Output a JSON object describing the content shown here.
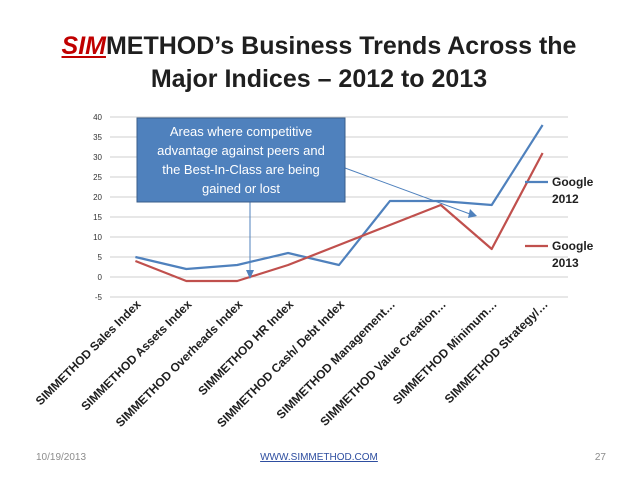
{
  "slide": {
    "title_brand": "SIM",
    "title_line1_rest": "METHOD’s Business Trends Across the",
    "title_line2": "Major Indices – 2012 to 2013",
    "date": "10/19/2013",
    "url": "WWW.SIMMETHOD.COM",
    "page_number": "27"
  },
  "colors": {
    "series_2012": "#4f81bd",
    "series_2013": "#c0504d",
    "callout_fill": "#4f81bd",
    "callout_text": "#ffffff",
    "grid": "#bfbfbf"
  },
  "chart_data": {
    "type": "line",
    "title": "",
    "xlabel": "",
    "ylabel": "",
    "ylim": [
      -5,
      40
    ],
    "yticks": [
      -5,
      0,
      5,
      10,
      15,
      20,
      25,
      30,
      35,
      40
    ],
    "grid": true,
    "legend_position": "right",
    "categories": [
      "SIMMETHOD Sales Index",
      "SIMMETHOD Assets Index",
      "SIMMETHOD Overheads Index",
      "SIMMETHOD HR Index",
      "SIMMETHOD Cash/ Debt Index",
      "SIMMETHOD Management…",
      "SIMMETHOD Value Creation…",
      "SIMMETHOD Minimum…",
      "SIMMETHOD Strategy/…"
    ],
    "series": [
      {
        "name": "Google 2012",
        "legend_lines": [
          "Google",
          "2012"
        ],
        "values": [
          5,
          2,
          3,
          6,
          3,
          19,
          19,
          18,
          38
        ]
      },
      {
        "name": "Google 2013",
        "legend_lines": [
          "Google",
          "2013"
        ],
        "values": [
          4,
          -1,
          -1,
          3,
          8,
          13,
          18,
          7,
          31
        ]
      }
    ],
    "annotation": {
      "lines": [
        "Areas where competitive",
        "advantage against peers and",
        "the Best-In-Class are being",
        "gained or lost"
      ]
    }
  }
}
